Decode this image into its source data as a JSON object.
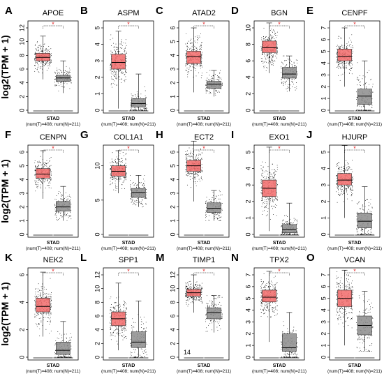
{
  "chart_data": {
    "type": "box",
    "ylabel": "log2(TPM + 1)",
    "colors": {
      "tumor": "#f26b6b",
      "normal": "#8c8c8c",
      "significance": "#e41a1c"
    },
    "panels": [
      {
        "label": "A",
        "gene": "APOE",
        "ylim": [
          0,
          12
        ],
        "yticks": [
          0,
          2,
          4,
          6,
          8,
          10,
          12
        ],
        "tumor": {
          "min": 4.5,
          "q1": 7.2,
          "median": 7.7,
          "q3": 8.3,
          "max": 10.8
        },
        "normal": {
          "min": 2.5,
          "q1": 4.2,
          "median": 4.7,
          "q3": 5.1,
          "max": 7.2
        },
        "xlabel": "STAD",
        "samples": "(num(T)=408; num(N)=211)"
      },
      {
        "label": "B",
        "gene": "ASPM",
        "ylim": [
          0,
          5
        ],
        "yticks": [
          0,
          1,
          2,
          3,
          4,
          5
        ],
        "tumor": {
          "min": 0.1,
          "q1": 2.5,
          "median": 2.9,
          "q3": 3.4,
          "max": 4.8
        },
        "normal": {
          "min": 0,
          "q1": 0.2,
          "median": 0.4,
          "q3": 0.7,
          "max": 2.2
        },
        "xlabel": "STAD",
        "samples": "(num(T)=408; num(N)=211)"
      },
      {
        "label": "C",
        "gene": "ATAD2",
        "ylim": [
          0,
          6
        ],
        "yticks": [
          0,
          1,
          2,
          3,
          4,
          5,
          6
        ],
        "tumor": {
          "min": 1.3,
          "q1": 3.4,
          "median": 3.9,
          "q3": 4.3,
          "max": 6.0
        },
        "normal": {
          "min": 1.0,
          "q1": 1.6,
          "median": 1.9,
          "q3": 2.1,
          "max": 2.9
        },
        "xlabel": "STAD",
        "samples": "(num(T)=408; num(N)=211)"
      },
      {
        "label": "D",
        "gene": "BGN",
        "ylim": [
          0,
          10
        ],
        "yticks": [
          0,
          2,
          4,
          6,
          8,
          10
        ],
        "tumor": {
          "min": 4.5,
          "q1": 7.0,
          "median": 7.6,
          "q3": 8.4,
          "max": 10.6
        },
        "normal": {
          "min": 2.3,
          "q1": 3.9,
          "median": 4.4,
          "q3": 5.2,
          "max": 6.6
        },
        "xlabel": "STAD",
        "samples": "(num(T)=408; num(N)=211)"
      },
      {
        "label": "E",
        "gene": "CENPF",
        "ylim": [
          0,
          7
        ],
        "yticks": [
          0,
          1,
          2,
          3,
          4,
          5,
          6,
          7
        ],
        "tumor": {
          "min": 2.0,
          "q1": 4.2,
          "median": 4.6,
          "q3": 5.2,
          "max": 7.0
        },
        "normal": {
          "min": 0,
          "q1": 0.5,
          "median": 1.2,
          "q3": 1.8,
          "max": 4.2
        },
        "xlabel": "STAD",
        "samples": "(num(T)=408; num(N)=211)"
      },
      {
        "label": "F",
        "gene": "CENPN",
        "ylim": [
          0,
          6
        ],
        "yticks": [
          0,
          1,
          2,
          3,
          4,
          5,
          6
        ],
        "tumor": {
          "min": 2.6,
          "q1": 4.1,
          "median": 4.4,
          "q3": 4.8,
          "max": 6.1
        },
        "normal": {
          "min": 1.0,
          "q1": 1.7,
          "median": 2.0,
          "q3": 2.4,
          "max": 3.5
        },
        "xlabel": "STAD",
        "samples": "(num(T)=408; num(N)=211)"
      },
      {
        "label": "G",
        "gene": "COL1A1",
        "ylim": [
          0,
          12
        ],
        "yticks": [
          0,
          5,
          10
        ],
        "tumor": {
          "min": 6.0,
          "q1": 8.5,
          "median": 9.2,
          "q3": 10.0,
          "max": 12.2
        },
        "normal": {
          "min": 4.0,
          "q1": 5.4,
          "median": 6.1,
          "q3": 6.7,
          "max": 8.6
        },
        "xlabel": "STAD",
        "samples": "(num(T)=408; num(N)=211)"
      },
      {
        "label": "H",
        "gene": "ECT2",
        "ylim": [
          0,
          6
        ],
        "yticks": [
          0,
          1,
          2,
          3,
          4,
          5,
          6
        ],
        "tumor": {
          "min": 2.4,
          "q1": 4.6,
          "median": 5.0,
          "q3": 5.4,
          "max": 6.8
        },
        "normal": {
          "min": 1.0,
          "q1": 1.6,
          "median": 1.9,
          "q3": 2.3,
          "max": 3.2
        },
        "xlabel": "STAD",
        "samples": "(num(T)=408; num(N)=211)"
      },
      {
        "label": "I",
        "gene": "EXO1",
        "ylim": [
          0,
          5
        ],
        "yticks": [
          0,
          1,
          2,
          3,
          4,
          5
        ],
        "tumor": {
          "min": 0.2,
          "q1": 2.3,
          "median": 2.8,
          "q3": 3.3,
          "max": 5.3
        },
        "normal": {
          "min": 0,
          "q1": 0.1,
          "median": 0.3,
          "q3": 0.6,
          "max": 1.9
        },
        "xlabel": "STAD",
        "samples": "(num(T)=408; num(N)=211)"
      },
      {
        "label": "J",
        "gene": "HJURP",
        "ylim": [
          0,
          5
        ],
        "yticks": [
          0,
          1,
          2,
          3,
          4,
          5
        ],
        "tumor": {
          "min": 1.0,
          "q1": 3.0,
          "median": 3.3,
          "q3": 3.7,
          "max": 5.4
        },
        "normal": {
          "min": 0,
          "q1": 0.4,
          "median": 0.8,
          "q3": 1.3,
          "max": 2.9
        },
        "xlabel": "STAD",
        "samples": "(num(T)=408; num(N)=211)"
      },
      {
        "label": "K",
        "gene": "NEK2",
        "ylim": [
          0,
          6
        ],
        "yticks": [
          0,
          2,
          4,
          6
        ],
        "tumor": {
          "min": 1.5,
          "q1": 3.3,
          "median": 3.7,
          "q3": 4.3,
          "max": 6.2
        },
        "normal": {
          "min": 0,
          "q1": 0.2,
          "median": 0.5,
          "q3": 1.1,
          "max": 2.6
        },
        "xlabel": "STAD",
        "samples": "(num(T)=408; num(N)=211)"
      },
      {
        "label": "L",
        "gene": "SPP1",
        "ylim": [
          0,
          12
        ],
        "yticks": [
          0,
          2,
          4,
          6,
          8,
          10,
          12
        ],
        "tumor": {
          "min": 1.0,
          "q1": 4.6,
          "median": 5.6,
          "q3": 6.6,
          "max": 10.8
        },
        "normal": {
          "min": 0,
          "q1": 1.4,
          "median": 2.2,
          "q3": 3.7,
          "max": 8.2
        },
        "xlabel": "STAD",
        "samples": "(num(T)=408; num(N)=211)"
      },
      {
        "label": "M",
        "gene": "TIMP1",
        "ylim": [
          0,
          12
        ],
        "yticks": [
          0,
          2,
          4,
          6,
          8,
          10,
          12
        ],
        "tumor": {
          "min": 6.5,
          "q1": 8.9,
          "median": 9.4,
          "q3": 9.9,
          "max": 12.0
        },
        "normal": {
          "min": 3.6,
          "q1": 5.6,
          "median": 6.5,
          "q3": 7.2,
          "max": 9.0
        },
        "xlabel": "STAD",
        "samples": "(num(T)=408; num(N)=211)"
      },
      {
        "label": "N",
        "gene": "TPX2",
        "ylim": [
          0,
          7
        ],
        "yticks": [
          0,
          1,
          2,
          3,
          4,
          5,
          6,
          7
        ],
        "tumor": {
          "min": 1.3,
          "q1": 4.7,
          "median": 5.1,
          "q3": 5.7,
          "max": 7.3
        },
        "normal": {
          "min": 0,
          "q1": 0.5,
          "median": 0.8,
          "q3": 2.0,
          "max": 3.8
        },
        "xlabel": "STAD",
        "samples": "(num(T)=408; num(N)=211)"
      },
      {
        "label": "O",
        "gene": "VCAN",
        "ylim": [
          0,
          7
        ],
        "yticks": [
          0,
          1,
          2,
          3,
          4,
          5,
          6,
          7
        ],
        "tumor": {
          "min": 1.0,
          "q1": 4.3,
          "median": 5.0,
          "q3": 5.7,
          "max": 7.4
        },
        "normal": {
          "min": 0.5,
          "q1": 1.9,
          "median": 2.7,
          "q3": 3.5,
          "max": 5.6
        },
        "xlabel": "STAD",
        "samples": "(num(T)=408; num(N)=211)"
      }
    ]
  },
  "stray_label": "14"
}
